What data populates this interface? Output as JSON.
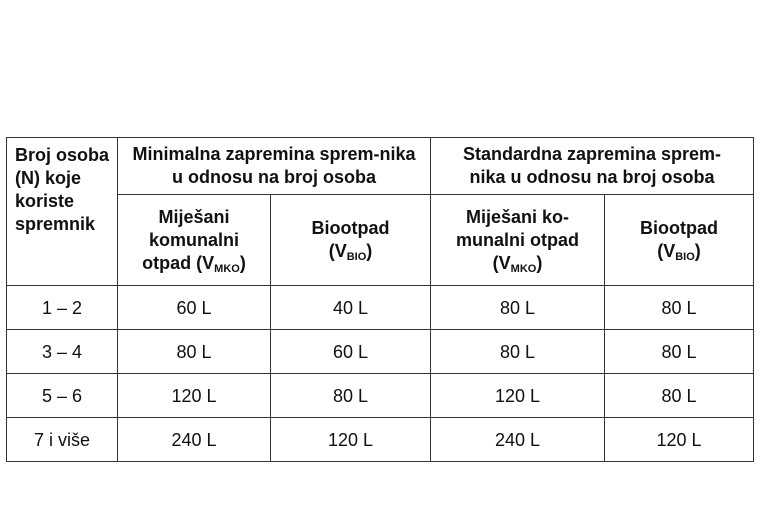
{
  "header": {
    "col0": "Broj osoba (N) koje koriste spremnik",
    "group_min": "Minimalna zapremina sprem-nika u odnosu na broj osoba",
    "group_std": "Standardna zapremina sprem-nika u odnosu na broj osoba",
    "min_mko": "Miješani komunalni otpad (V",
    "min_mko_sub": "MKO",
    "min_bio": "Biootpad (V",
    "min_bio_sub": "BIO",
    "std_mko": "Miješani ko-munalni otpad (V",
    "std_mko_sub": "MKO",
    "std_bio": "Biootpad (V",
    "std_bio_sub": "BIO",
    "close": ")"
  },
  "rows": [
    [
      "1 – 2",
      "60 L",
      "40 L",
      "80 L",
      "80 L"
    ],
    [
      "3 – 4",
      "80 L",
      "60 L",
      "80 L",
      "80 L"
    ],
    [
      "5 – 6",
      "120 L",
      "80 L",
      "120 L",
      "80 L"
    ],
    [
      "7 i više",
      "240 L",
      "120 L",
      "240 L",
      "120 L"
    ]
  ]
}
